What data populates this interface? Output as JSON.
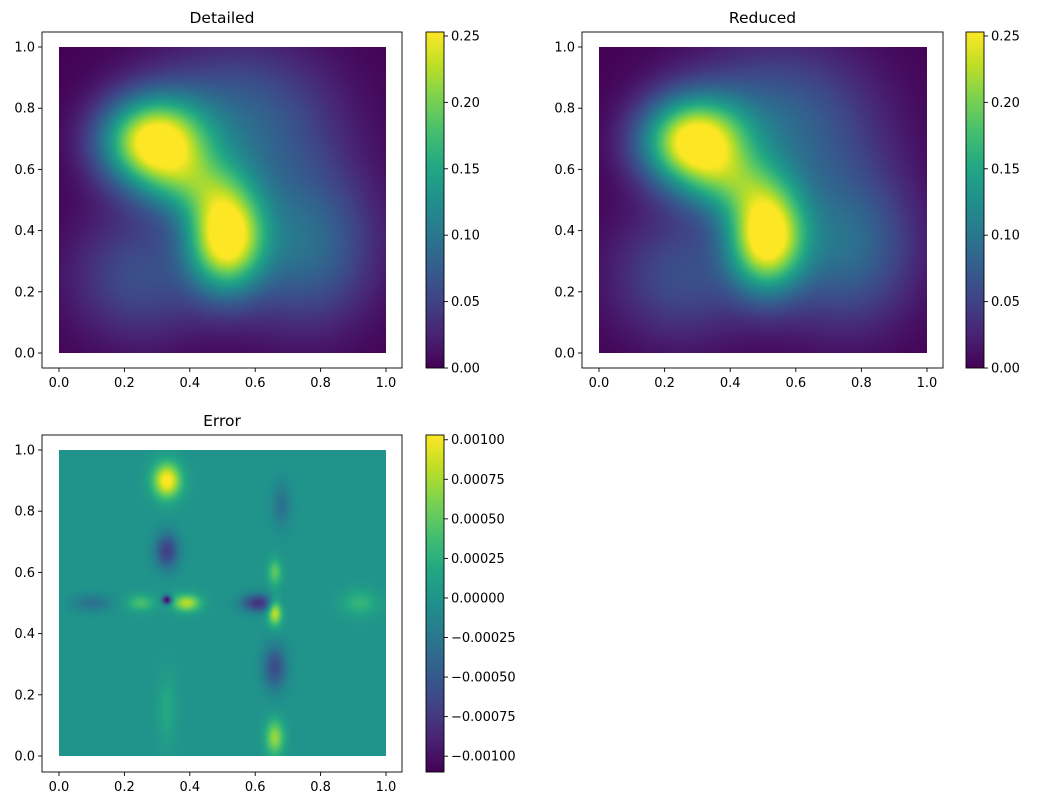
{
  "chart_data": [
    {
      "type": "heatmap",
      "title": "Detailed",
      "xlabel": "",
      "ylabel": "",
      "xlim": [
        0.0,
        1.0
      ],
      "ylim": [
        0.0,
        1.0
      ],
      "xticks": [
        "0.0",
        "0.2",
        "0.4",
        "0.6",
        "0.8",
        "1.0"
      ],
      "yticks": [
        "0.0",
        "0.2",
        "0.4",
        "0.6",
        "0.8",
        "1.0"
      ],
      "colormap": "viridis",
      "clim": [
        0.0,
        0.253
      ],
      "colorbar_ticks": [
        {
          "value": 0.0,
          "label": "0.00"
        },
        {
          "value": 0.05,
          "label": "0.05"
        },
        {
          "value": 0.1,
          "label": "0.10"
        },
        {
          "value": 0.15,
          "label": "0.15"
        },
        {
          "value": 0.2,
          "label": "0.20"
        },
        {
          "value": 0.25,
          "label": "0.25"
        }
      ],
      "field": {
        "type": "gaussian_sum",
        "components": [
          {
            "x": 0.29,
            "y": 0.69,
            "amplitude": 0.25,
            "sx": 0.11,
            "sy": 0.1
          },
          {
            "x": 0.51,
            "y": 0.38,
            "amplitude": 0.25,
            "sx": 0.08,
            "sy": 0.12
          },
          {
            "x": 0.4,
            "y": 0.55,
            "amplitude": 0.08,
            "sx": 0.1,
            "sy": 0.08
          },
          {
            "x": 0.55,
            "y": 0.75,
            "amplitude": 0.08,
            "sx": 0.2,
            "sy": 0.18
          },
          {
            "x": 0.25,
            "y": 0.25,
            "amplitude": 0.06,
            "sx": 0.15,
            "sy": 0.15
          },
          {
            "x": 0.75,
            "y": 0.35,
            "amplitude": 0.09,
            "sx": 0.15,
            "sy": 0.18
          }
        ]
      }
    },
    {
      "type": "heatmap",
      "title": "Reduced",
      "xlabel": "",
      "ylabel": "",
      "xlim": [
        0.0,
        1.0
      ],
      "ylim": [
        0.0,
        1.0
      ],
      "xticks": [
        "0.0",
        "0.2",
        "0.4",
        "0.6",
        "0.8",
        "1.0"
      ],
      "yticks": [
        "0.0",
        "0.2",
        "0.4",
        "0.6",
        "0.8",
        "1.0"
      ],
      "colormap": "viridis",
      "clim": [
        0.0,
        0.253
      ],
      "colorbar_ticks": [
        {
          "value": 0.0,
          "label": "0.00"
        },
        {
          "value": 0.05,
          "label": "0.05"
        },
        {
          "value": 0.1,
          "label": "0.10"
        },
        {
          "value": 0.15,
          "label": "0.15"
        },
        {
          "value": 0.2,
          "label": "0.20"
        },
        {
          "value": 0.25,
          "label": "0.25"
        }
      ],
      "field": {
        "type": "gaussian_sum",
        "components": [
          {
            "x": 0.29,
            "y": 0.69,
            "amplitude": 0.25,
            "sx": 0.11,
            "sy": 0.1
          },
          {
            "x": 0.51,
            "y": 0.38,
            "amplitude": 0.25,
            "sx": 0.08,
            "sy": 0.12
          },
          {
            "x": 0.4,
            "y": 0.55,
            "amplitude": 0.08,
            "sx": 0.1,
            "sy": 0.08
          },
          {
            "x": 0.55,
            "y": 0.75,
            "amplitude": 0.08,
            "sx": 0.2,
            "sy": 0.18
          },
          {
            "x": 0.25,
            "y": 0.25,
            "amplitude": 0.06,
            "sx": 0.15,
            "sy": 0.15
          },
          {
            "x": 0.75,
            "y": 0.35,
            "amplitude": 0.09,
            "sx": 0.15,
            "sy": 0.18
          }
        ]
      }
    },
    {
      "type": "heatmap",
      "title": "Error",
      "xlabel": "",
      "ylabel": "",
      "xlim": [
        0.0,
        1.0
      ],
      "ylim": [
        0.0,
        1.0
      ],
      "xticks": [
        "0.0",
        "0.2",
        "0.4",
        "0.6",
        "0.8",
        "1.0"
      ],
      "yticks": [
        "0.0",
        "0.2",
        "0.4",
        "0.6",
        "0.8",
        "1.0"
      ],
      "colormap": "viridis",
      "clim": [
        -0.0011,
        0.00103
      ],
      "colorbar_ticks": [
        {
          "value": 0.001,
          "label": "0.00100"
        },
        {
          "value": 0.00075,
          "label": "0.00075"
        },
        {
          "value": 0.0005,
          "label": "0.00050"
        },
        {
          "value": 0.00025,
          "label": "0.00025"
        },
        {
          "value": 0.0,
          "label": "0.00000"
        },
        {
          "value": -0.00025,
          "label": "−0.00025"
        },
        {
          "value": -0.0005,
          "label": "−0.00050"
        },
        {
          "value": -0.00075,
          "label": "−0.00075"
        },
        {
          "value": -0.001,
          "label": "−0.00100"
        }
      ],
      "field": {
        "type": "gaussian_sum",
        "components": [
          {
            "x": 0.33,
            "y": 0.9,
            "amplitude": 0.0011,
            "sx": 0.03,
            "sy": 0.04
          },
          {
            "x": 0.33,
            "y": 0.67,
            "amplitude": -0.0007,
            "sx": 0.025,
            "sy": 0.04
          },
          {
            "x": 0.33,
            "y": 0.51,
            "amplitude": -0.0012,
            "sx": 0.01,
            "sy": 0.01
          },
          {
            "x": 0.39,
            "y": 0.5,
            "amplitude": 0.0008,
            "sx": 0.03,
            "sy": 0.02
          },
          {
            "x": 0.25,
            "y": 0.5,
            "amplitude": 0.0004,
            "sx": 0.03,
            "sy": 0.02
          },
          {
            "x": 0.1,
            "y": 0.5,
            "amplitude": -0.0003,
            "sx": 0.04,
            "sy": 0.02
          },
          {
            "x": 0.66,
            "y": 0.47,
            "amplitude": 0.0009,
            "sx": 0.015,
            "sy": 0.03
          },
          {
            "x": 0.66,
            "y": 0.6,
            "amplitude": 0.0005,
            "sx": 0.015,
            "sy": 0.03
          },
          {
            "x": 0.61,
            "y": 0.5,
            "amplitude": -0.0008,
            "sx": 0.035,
            "sy": 0.02
          },
          {
            "x": 0.66,
            "y": 0.29,
            "amplitude": -0.0006,
            "sx": 0.025,
            "sy": 0.05
          },
          {
            "x": 0.66,
            "y": 0.06,
            "amplitude": 0.0007,
            "sx": 0.02,
            "sy": 0.04
          },
          {
            "x": 0.68,
            "y": 0.82,
            "amplitude": -0.0003,
            "sx": 0.02,
            "sy": 0.05
          },
          {
            "x": 0.92,
            "y": 0.5,
            "amplitude": 0.0003,
            "sx": 0.04,
            "sy": 0.03
          },
          {
            "x": 0.33,
            "y": 0.15,
            "amplitude": 0.0002,
            "sx": 0.02,
            "sy": 0.08
          }
        ]
      }
    }
  ]
}
